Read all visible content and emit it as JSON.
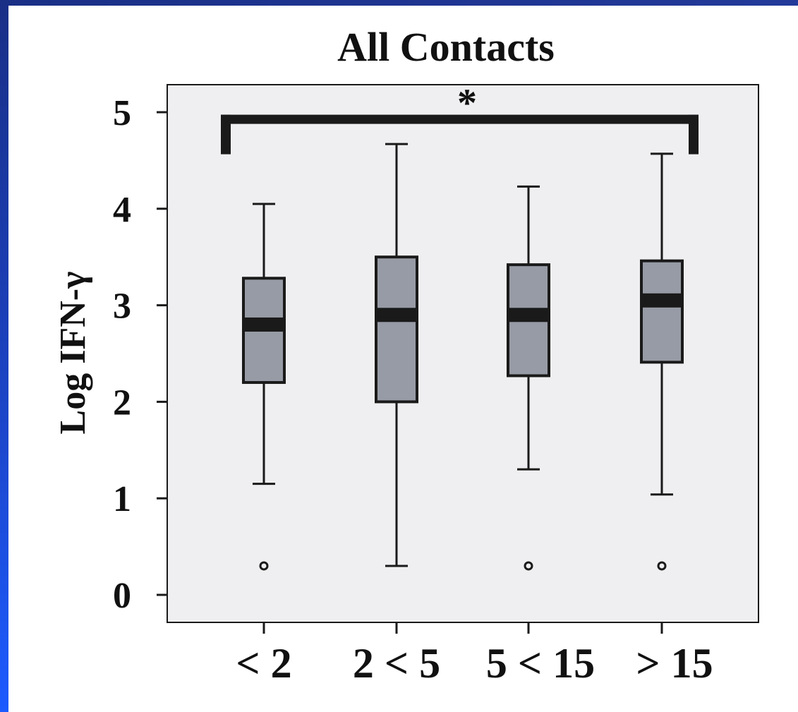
{
  "colors": {
    "frame_blue": "#1b3fb8",
    "plot_background": "#efeff1",
    "box_fill": "#979ba5",
    "stroke": "#1a1a1a"
  },
  "chart_data": {
    "type": "boxplot",
    "title": "All Contacts",
    "xlabel": "",
    "ylabel": "Log IFN-γ",
    "ylim": [
      -0.3,
      5.3
    ],
    "yticks": [
      "0",
      "1",
      "2",
      "3",
      "4",
      "5"
    ],
    "categories": [
      "< 2",
      "2 < 5",
      "5 < 15",
      "> 15"
    ],
    "boxes": [
      {
        "category": "< 2",
        "whisker_low": 1.15,
        "q1": 2.2,
        "median": 2.8,
        "q3": 3.28,
        "whisker_high": 4.05,
        "outliers": [
          0.3
        ]
      },
      {
        "category": "2 < 5",
        "whisker_low": 0.3,
        "q1": 2.0,
        "median": 2.9,
        "q3": 3.5,
        "whisker_high": 4.67,
        "outliers": []
      },
      {
        "category": "5 < 15",
        "whisker_low": 1.3,
        "q1": 2.27,
        "median": 2.9,
        "q3": 3.42,
        "whisker_high": 4.23,
        "outliers": [
          0.3
        ]
      },
      {
        "category": "> 15",
        "whisker_low": 1.04,
        "q1": 2.41,
        "median": 3.05,
        "q3": 3.46,
        "whisker_high": 4.57,
        "outliers": [
          0.3
        ]
      }
    ],
    "annotations": [
      {
        "text": "*",
        "type": "significance_bracket",
        "from": "< 2",
        "to": "> 15",
        "y": 4.93
      }
    ],
    "grid": false,
    "legend": "none"
  }
}
